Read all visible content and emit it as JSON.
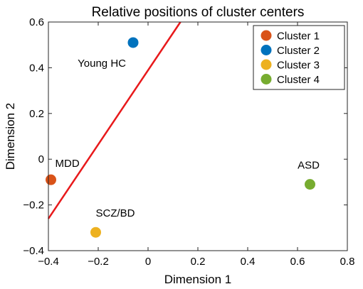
{
  "chart_data": {
    "type": "scatter",
    "title": "Relative positions of cluster centers",
    "xlabel": "Dimension 1",
    "ylabel": "Dimension 2",
    "xlim": [
      -0.4,
      0.8
    ],
    "ylim": [
      -0.4,
      0.6
    ],
    "x_ticks": [
      -0.4,
      -0.2,
      0,
      0.2,
      0.4,
      0.6,
      0.8
    ],
    "x_tick_labels": [
      "−0.4",
      "−0.2",
      "0",
      "0.2",
      "0.4",
      "0.6",
      "0.8"
    ],
    "y_ticks": [
      -0.4,
      -0.2,
      0,
      0.2,
      0.4,
      0.6
    ],
    "y_tick_labels": [
      "−0.4",
      "−0.2",
      "0",
      "0.2",
      "0.4",
      "0.6"
    ],
    "grid": false,
    "legend_position": "top-right",
    "series": [
      {
        "name": "Cluster 1",
        "color": "#D95319",
        "x": -0.39,
        "y": -0.09,
        "label": "MDD"
      },
      {
        "name": "Cluster 2",
        "color": "#0072BD",
        "x": -0.06,
        "y": 0.51,
        "label": "Young HC"
      },
      {
        "name": "Cluster 3",
        "color": "#EDB120",
        "x": -0.21,
        "y": -0.32,
        "label": "SCZ/BD"
      },
      {
        "name": "Cluster 4",
        "color": "#77AC30",
        "x": 0.65,
        "y": -0.11,
        "label": "ASD"
      }
    ],
    "boundary_line": {
      "color": "#E8191B",
      "x": [
        -0.4,
        0.13
      ],
      "y": [
        -0.26,
        0.6
      ]
    }
  }
}
